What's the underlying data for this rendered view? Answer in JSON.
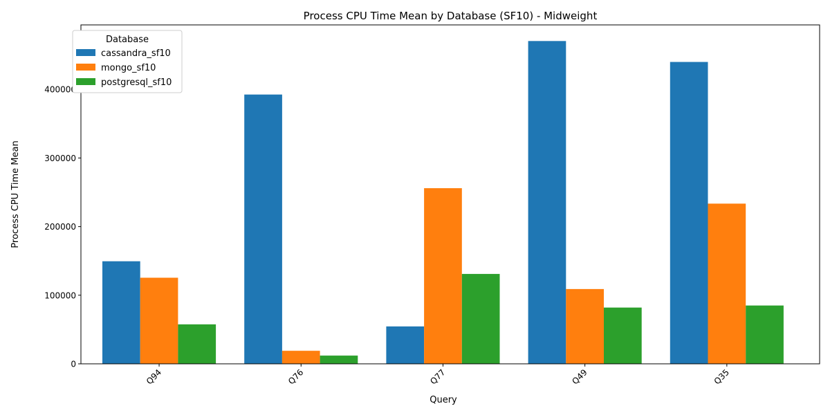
{
  "chart_data": {
    "type": "bar",
    "title": "Process CPU Time Mean by Database (SF10) - Midweight",
    "xlabel": "Query",
    "ylabel": "Process CPU Time Mean",
    "categories": [
      "Q94",
      "Q76",
      "Q77",
      "Q49",
      "Q35"
    ],
    "series": [
      {
        "name": "cassandra_sf10",
        "color": "#1f77b4",
        "values": [
          149500,
          392500,
          54500,
          470500,
          440000
        ]
      },
      {
        "name": "mongo_sf10",
        "color": "#ff7f0e",
        "values": [
          125500,
          19000,
          256000,
          109000,
          233500
        ]
      },
      {
        "name": "postgresql_sf10",
        "color": "#2ca02c",
        "values": [
          57500,
          12000,
          131000,
          82000,
          85000
        ]
      }
    ],
    "ylim": [
      0,
      494000
    ],
    "yticks": [
      0,
      100000,
      200000,
      300000,
      400000
    ],
    "grid": false,
    "legend": {
      "title": "Database",
      "placement": "top-left"
    }
  }
}
